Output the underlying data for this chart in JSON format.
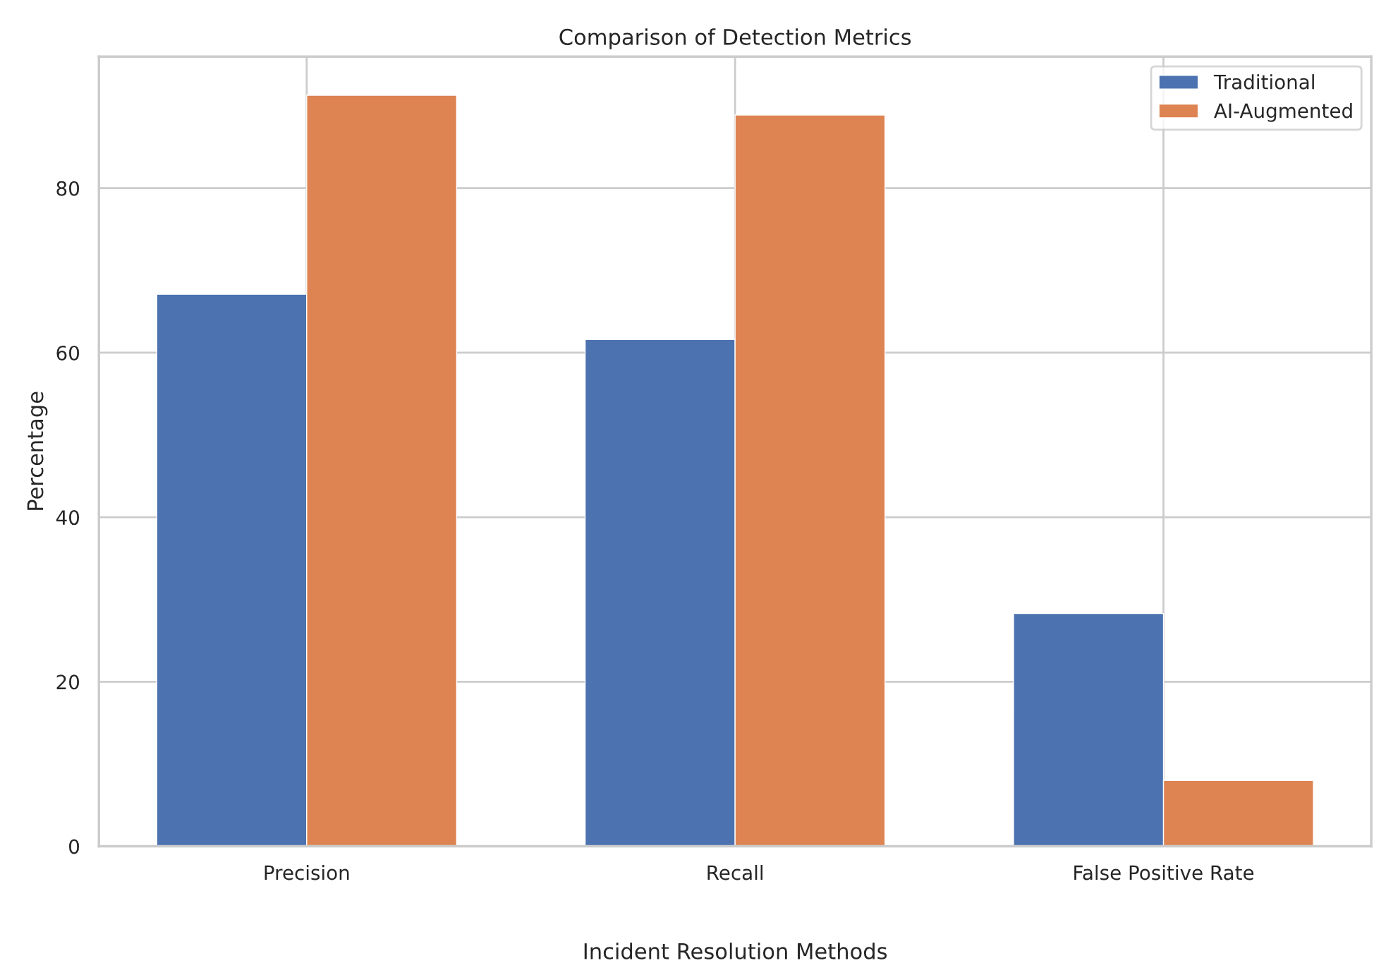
{
  "chart_data": {
    "type": "bar",
    "title": "Comparison of Detection Metrics",
    "xlabel": "Incident Resolution Methods",
    "ylabel": "Percentage",
    "categories": [
      "Precision",
      "Recall",
      "False Positive Rate"
    ],
    "series": [
      {
        "name": "Traditional",
        "color": "#4c72b0",
        "values": [
          67.1,
          61.6,
          28.3
        ]
      },
      {
        "name": "AI-Augmented",
        "color": "#dd8452",
        "values": [
          91.3,
          88.9,
          8.0
        ]
      }
    ],
    "ylim": [
      0,
      96
    ],
    "yticks": [
      0,
      20,
      40,
      60,
      80
    ],
    "grid": true,
    "legend": "top right"
  }
}
